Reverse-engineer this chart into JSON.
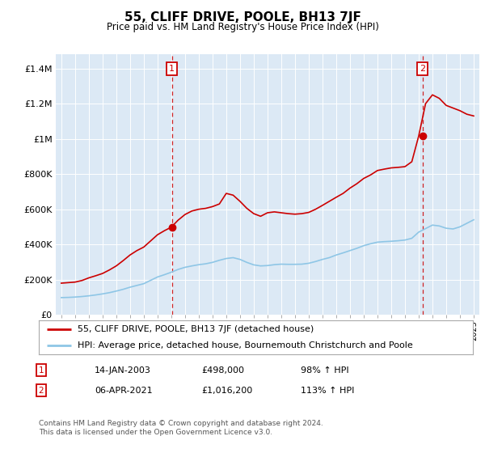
{
  "title": "55, CLIFF DRIVE, POOLE, BH13 7JF",
  "subtitle": "Price paid vs. HM Land Registry's House Price Index (HPI)",
  "ylabel_ticks": [
    "£0",
    "£200K",
    "£400K",
    "£600K",
    "£800K",
    "£1M",
    "£1.2M",
    "£1.4M"
  ],
  "ytick_values": [
    0,
    200000,
    400000,
    600000,
    800000,
    1000000,
    1200000,
    1400000
  ],
  "ylim": [
    0,
    1480000
  ],
  "xlim_start": 1994.6,
  "xlim_end": 2025.4,
  "hpi_color": "#8ec6e6",
  "price_color": "#cc0000",
  "marker1_x": 2003.04,
  "marker1_y": 498000,
  "marker2_x": 2021.27,
  "marker2_y": 1016200,
  "legend_line1": "55, CLIFF DRIVE, POOLE, BH13 7JF (detached house)",
  "legend_line2": "HPI: Average price, detached house, Bournemouth Christchurch and Poole",
  "note1_date": "14-JAN-2003",
  "note1_price": "£498,000",
  "note1_hpi": "98% ↑ HPI",
  "note2_date": "06-APR-2021",
  "note2_price": "£1,016,200",
  "note2_hpi": "113% ↑ HPI",
  "footer": "Contains HM Land Registry data © Crown copyright and database right 2024.\nThis data is licensed under the Open Government Licence v3.0.",
  "fig_bg": "#f0f0f0",
  "plot_bg": "#dce9f5",
  "years_hpi": [
    1995,
    1995.5,
    1996,
    1996.5,
    1997,
    1997.5,
    1998,
    1998.5,
    1999,
    1999.5,
    2000,
    2000.5,
    2001,
    2001.5,
    2002,
    2002.5,
    2003,
    2003.5,
    2004,
    2004.5,
    2005,
    2005.5,
    2006,
    2006.5,
    2007,
    2007.5,
    2008,
    2008.5,
    2009,
    2009.5,
    2010,
    2010.5,
    2011,
    2011.5,
    2012,
    2012.5,
    2013,
    2013.5,
    2014,
    2014.5,
    2015,
    2015.5,
    2016,
    2016.5,
    2017,
    2017.5,
    2018,
    2018.5,
    2019,
    2019.5,
    2020,
    2020.5,
    2021,
    2021.5,
    2022,
    2022.5,
    2023,
    2023.5,
    2024,
    2024.5,
    2025
  ],
  "hpi_values": [
    98000,
    99000,
    101000,
    104000,
    108000,
    113000,
    119000,
    126000,
    135000,
    145000,
    157000,
    167000,
    177000,
    196000,
    215000,
    228000,
    242000,
    258000,
    270000,
    278000,
    285000,
    290000,
    298000,
    310000,
    320000,
    325000,
    315000,
    298000,
    284000,
    278000,
    280000,
    285000,
    288000,
    287000,
    287000,
    288000,
    293000,
    303000,
    315000,
    325000,
    340000,
    352000,
    365000,
    378000,
    393000,
    404000,
    413000,
    416000,
    418000,
    421000,
    425000,
    435000,
    470000,
    490000,
    510000,
    505000,
    492000,
    488000,
    500000,
    520000,
    540000
  ],
  "years_price": [
    1995,
    1995.5,
    1996,
    1996.5,
    1997,
    1997.5,
    1998,
    1998.5,
    1999,
    1999.5,
    2000,
    2000.5,
    2001,
    2001.5,
    2002,
    2002.5,
    2003,
    2003.5,
    2004,
    2004.5,
    2005,
    2005.5,
    2006,
    2006.5,
    2007,
    2007.5,
    2008,
    2008.5,
    2009,
    2009.5,
    2010,
    2010.5,
    2011,
    2011.5,
    2012,
    2012.5,
    2013,
    2013.5,
    2014,
    2014.5,
    2015,
    2015.5,
    2016,
    2016.5,
    2017,
    2017.5,
    2018,
    2018.5,
    2019,
    2019.5,
    2020,
    2020.5,
    2021,
    2021.5,
    2022,
    2022.5,
    2023,
    2023.5,
    2024,
    2024.5,
    2025
  ],
  "price_values": [
    180000,
    183000,
    186000,
    195000,
    210000,
    222000,
    235000,
    255000,
    278000,
    308000,
    340000,
    365000,
    385000,
    420000,
    455000,
    478000,
    498000,
    538000,
    570000,
    590000,
    600000,
    605000,
    615000,
    630000,
    690000,
    680000,
    645000,
    605000,
    575000,
    560000,
    580000,
    585000,
    580000,
    575000,
    572000,
    575000,
    582000,
    600000,
    622000,
    645000,
    668000,
    690000,
    720000,
    745000,
    775000,
    795000,
    820000,
    828000,
    835000,
    838000,
    842000,
    870000,
    1016200,
    1200000,
    1250000,
    1230000,
    1190000,
    1175000,
    1160000,
    1140000,
    1130000
  ]
}
